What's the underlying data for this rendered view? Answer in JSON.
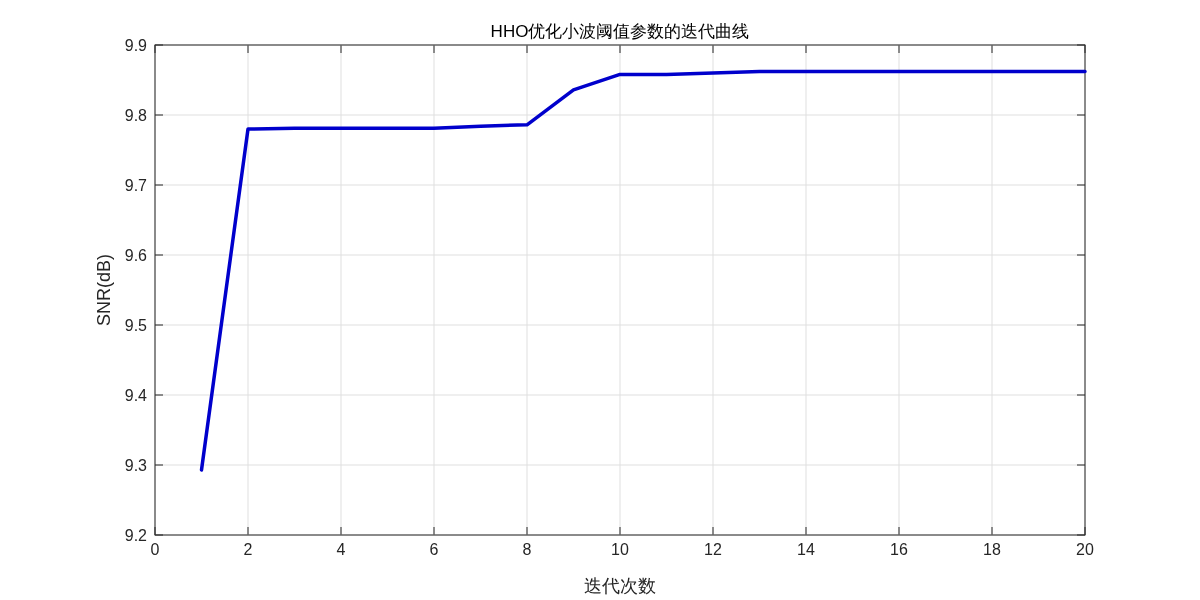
{
  "chart_data": {
    "type": "line",
    "title": "HHO优化小波阈值参数的迭代曲线",
    "xlabel": "迭代次数",
    "ylabel": "SNR(dB)",
    "x": [
      1,
      2,
      3,
      4,
      5,
      6,
      7,
      8,
      9,
      10,
      11,
      12,
      13,
      14,
      15,
      16,
      17,
      18,
      19,
      20
    ],
    "series": [
      {
        "color": "#0000cc",
        "values": [
          9.293,
          9.78,
          9.781,
          9.781,
          9.781,
          9.781,
          9.784,
          9.786,
          9.836,
          9.858,
          9.858,
          9.86,
          9.862,
          9.862,
          9.862,
          9.862,
          9.862,
          9.862,
          9.862,
          9.862
        ]
      }
    ],
    "xlim": [
      0,
      20
    ],
    "xticks": [
      0,
      2,
      4,
      6,
      8,
      10,
      12,
      14,
      16,
      18,
      20
    ],
    "ylim": [
      9.2,
      9.9
    ],
    "yticks": [
      9.2,
      9.3,
      9.4,
      9.5,
      9.6,
      9.7,
      9.8,
      9.9
    ],
    "grid": true,
    "marker": "none",
    "line_style": "solid"
  }
}
